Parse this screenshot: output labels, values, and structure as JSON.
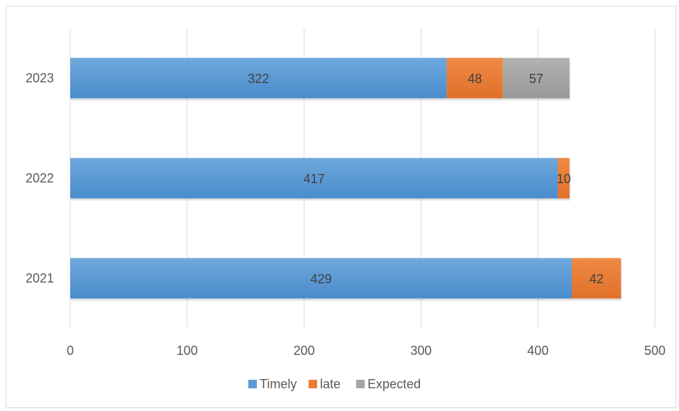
{
  "chart_data": {
    "type": "bar",
    "orientation": "horizontal",
    "stacked": true,
    "categories": [
      "2021",
      "2022",
      "2023"
    ],
    "series": [
      {
        "name": "Timely",
        "values": [
          429,
          417,
          322
        ],
        "color": "#5b9bd5"
      },
      {
        "name": "late",
        "values": [
          42,
          10,
          48
        ],
        "color": "#ed7d31"
      },
      {
        "name": "Expected",
        "values": [
          null,
          null,
          57
        ],
        "color": "#a5a5a5"
      }
    ],
    "xlim": [
      0,
      500
    ],
    "x_ticks": [
      "0",
      "100",
      "200",
      "300",
      "400",
      "500"
    ],
    "grid": "vertical",
    "legend_position": "bottom",
    "data_labels": true
  }
}
